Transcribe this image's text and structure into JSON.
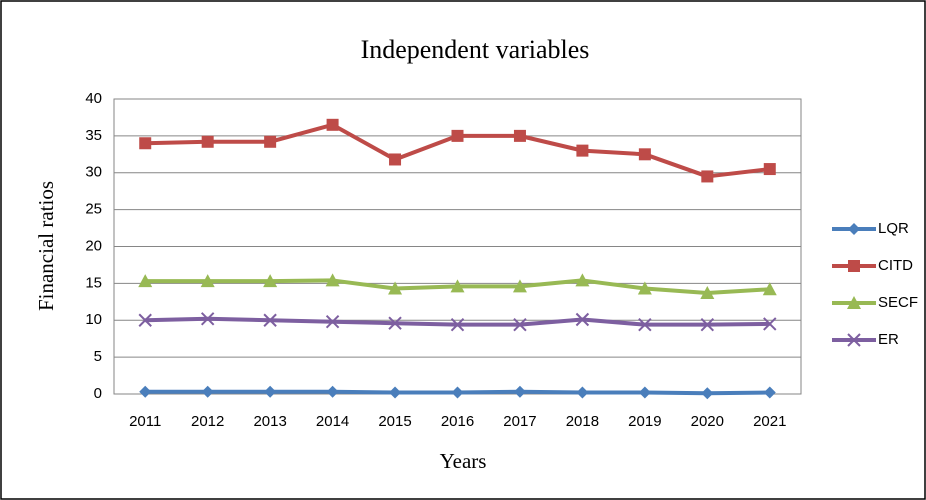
{
  "chart_data": {
    "type": "line",
    "title": "Independent variables",
    "x_label": "Years",
    "y_label": "Financial ratios",
    "categories": [
      "2011",
      "2012",
      "2013",
      "2014",
      "2015",
      "2016",
      "2017",
      "2018",
      "2019",
      "2020",
      "2021"
    ],
    "series": [
      {
        "name": "LQR",
        "color": "#4a7ebb",
        "marker": "diamond",
        "values": [
          0.3,
          0.3,
          0.3,
          0.3,
          0.2,
          0.2,
          0.3,
          0.2,
          0.2,
          0.1,
          0.2
        ]
      },
      {
        "name": "CITD",
        "color": "#be4b48",
        "marker": "square",
        "values": [
          34,
          34.2,
          34.2,
          36.5,
          31.8,
          35,
          35,
          33,
          32.5,
          29.5,
          30.5
        ]
      },
      {
        "name": "SECF",
        "color": "#98b954",
        "marker": "triangle",
        "values": [
          15.3,
          15.3,
          15.3,
          15.4,
          14.3,
          14.6,
          14.6,
          15.4,
          14.3,
          13.7,
          14.2
        ]
      },
      {
        "name": "ER",
        "color": "#7d5fa0",
        "marker": "x",
        "values": [
          10,
          10.2,
          10,
          9.8,
          9.6,
          9.4,
          9.4,
          10.1,
          9.4,
          9.4,
          9.5
        ]
      }
    ],
    "ylim": [
      0,
      40
    ],
    "yticks": [
      0,
      5,
      10,
      15,
      20,
      25,
      30,
      35,
      40
    ],
    "grid": true,
    "legend": "right"
  }
}
